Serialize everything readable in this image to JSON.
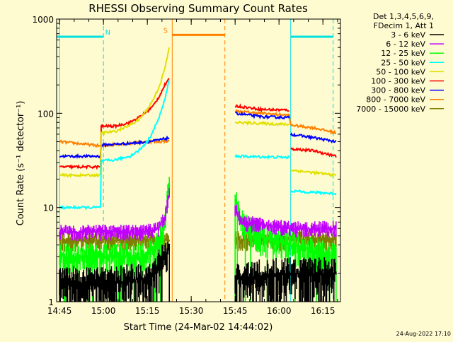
{
  "chart_data": {
    "type": "line",
    "title": "RHESSI Observing Summary Count Rates",
    "xlabel": "Start Time (24-Mar-02 14:44:02)",
    "ylabel": "Count Rate (s⁻¹ detector⁻¹)",
    "yscale": "log",
    "ylim": [
      1,
      1000
    ],
    "xlim_minutes": [
      0,
      97
    ],
    "x_ticks": [
      {
        "label": "14:45",
        "minute": 1
      },
      {
        "label": "15:00",
        "minute": 16
      },
      {
        "label": "15:15",
        "minute": 31
      },
      {
        "label": "15:30",
        "minute": 46
      },
      {
        "label": "15:45",
        "minute": 61
      },
      {
        "label": "16:00",
        "minute": 76
      },
      {
        "label": "16:15",
        "minute": 91
      }
    ],
    "y_ticks": [
      {
        "label": "1",
        "value": 1
      },
      {
        "label": "10",
        "value": 10
      },
      {
        "label": "100",
        "value": 100
      },
      {
        "label": "1000",
        "value": 1000
      }
    ],
    "legend": {
      "position": "top-right",
      "header": [
        "Det 1,3,4,5,6,9,",
        "FDecim 1, Att 1"
      ]
    },
    "flag_bars": [
      {
        "label": "N",
        "color": "#00e0e0",
        "y_value": 650,
        "segments": [
          [
            0,
            16
          ],
          [
            80,
            94.5
          ]
        ],
        "label_minute": 17.5
      },
      {
        "label": "S",
        "color": "#ff8000",
        "y_value": 680,
        "segments": [
          [
            39.5,
            57.5
          ]
        ],
        "label_minute": 37.2
      }
    ],
    "vlines": [
      {
        "minute": 1,
        "color": "#00e0e0",
        "style": "solid"
      },
      {
        "minute": 16,
        "color": "#00e0e0",
        "style": "dashed"
      },
      {
        "minute": 80,
        "color": "#00e0e0",
        "style": "solid"
      },
      {
        "minute": 94.5,
        "color": "#00e0e0",
        "style": "dashed"
      },
      {
        "minute": 39.5,
        "color": "#ff8000",
        "style": "solid"
      },
      {
        "minute": 57.5,
        "color": "#ff8000",
        "style": "dashed"
      }
    ],
    "series": [
      {
        "name": "3 - 6 keV",
        "color": "#000000",
        "style": "noise",
        "base": 1.6,
        "spread": 0.5,
        "floor": 1,
        "drops": 0.3,
        "segments": [
          [
            1,
            38.5
          ],
          [
            61,
            95.5
          ]
        ],
        "points": [
          [
            1,
            1.6
          ],
          [
            20,
            1.6
          ],
          [
            32,
            1.8
          ],
          [
            37,
            3
          ],
          [
            38.5,
            4
          ],
          [
            61,
            1.8
          ],
          [
            80,
            2
          ],
          [
            95.5,
            2
          ]
        ]
      },
      {
        "name": "6 - 12 keV",
        "color": "#c000ff",
        "style": "noise",
        "base": 5.5,
        "spread": 0.2,
        "floor": 1,
        "drops": 0,
        "segments": [
          [
            1,
            38.5
          ],
          [
            61,
            95.5
          ]
        ],
        "points": [
          [
            1,
            5.5
          ],
          [
            30,
            5.5
          ],
          [
            35,
            6
          ],
          [
            37,
            8
          ],
          [
            38.5,
            14
          ],
          [
            61,
            10
          ],
          [
            63,
            7
          ],
          [
            80,
            6
          ],
          [
            95.5,
            6
          ]
        ]
      },
      {
        "name": "12 - 25 keV",
        "color": "#00ff00",
        "style": "noise",
        "base": 3,
        "spread": 0.4,
        "floor": 1,
        "drops": 0.12,
        "segments": [
          [
            1,
            38.5
          ],
          [
            61,
            95.5
          ]
        ],
        "points": [
          [
            1,
            3
          ],
          [
            30,
            3
          ],
          [
            35,
            4
          ],
          [
            37,
            7
          ],
          [
            38.5,
            20
          ],
          [
            61,
            12
          ],
          [
            63,
            7
          ],
          [
            70,
            5
          ],
          [
            80,
            4
          ],
          [
            95.5,
            3
          ]
        ]
      },
      {
        "name": "25 - 50 keV",
        "color": "#00ffff",
        "style": "line",
        "segments": [
          [
            1,
            15
          ],
          [
            15,
            38.5
          ],
          [
            61,
            79.5
          ],
          [
            80,
            95.5
          ]
        ],
        "points": [
          [
            1,
            10
          ],
          [
            15,
            10
          ],
          [
            15,
            31
          ],
          [
            20,
            32
          ],
          [
            25,
            35
          ],
          [
            28,
            40
          ],
          [
            31,
            50
          ],
          [
            33,
            65
          ],
          [
            35,
            90
          ],
          [
            37,
            140
          ],
          [
            38.5,
            230
          ],
          [
            61,
            35
          ],
          [
            79.5,
            34
          ],
          [
            80,
            15
          ],
          [
            95.5,
            14
          ]
        ]
      },
      {
        "name": "50 - 100 keV",
        "color": "#e0e000",
        "style": "line",
        "segments": [
          [
            1,
            15
          ],
          [
            15,
            38.5
          ],
          [
            61,
            79.5
          ],
          [
            80,
            95.5
          ]
        ],
        "points": [
          [
            1,
            22
          ],
          [
            15,
            22
          ],
          [
            15,
            62
          ],
          [
            20,
            64
          ],
          [
            25,
            75
          ],
          [
            28,
            85
          ],
          [
            31,
            110
          ],
          [
            33,
            140
          ],
          [
            35,
            190
          ],
          [
            37,
            300
          ],
          [
            38.5,
            500
          ],
          [
            61,
            80
          ],
          [
            70,
            78
          ],
          [
            79.5,
            76
          ],
          [
            80,
            25
          ],
          [
            95.5,
            22
          ]
        ]
      },
      {
        "name": "100 - 300 keV",
        "color": "#ff0000",
        "style": "line",
        "segments": [
          [
            1,
            15
          ],
          [
            15,
            38.5
          ],
          [
            61,
            79.5
          ],
          [
            80,
            95.5
          ]
        ],
        "points": [
          [
            1,
            27
          ],
          [
            15,
            27
          ],
          [
            15,
            73
          ],
          [
            20,
            73
          ],
          [
            25,
            80
          ],
          [
            28,
            90
          ],
          [
            31,
            105
          ],
          [
            33,
            120
          ],
          [
            35,
            150
          ],
          [
            37,
            200
          ],
          [
            38.5,
            230
          ],
          [
            61,
            120
          ],
          [
            70,
            110
          ],
          [
            79.5,
            108
          ],
          [
            80,
            42
          ],
          [
            88,
            40
          ],
          [
            95.5,
            35
          ]
        ]
      },
      {
        "name": "300 - 800 keV",
        "color": "#0000ff",
        "style": "line",
        "segments": [
          [
            1,
            15
          ],
          [
            15,
            38.5
          ],
          [
            61,
            79.5
          ],
          [
            80,
            95.5
          ]
        ],
        "points": [
          [
            1,
            35
          ],
          [
            15,
            35
          ],
          [
            15,
            46
          ],
          [
            25,
            48
          ],
          [
            31,
            50
          ],
          [
            35,
            52
          ],
          [
            38.5,
            55
          ],
          [
            61,
            100
          ],
          [
            70,
            92
          ],
          [
            79.5,
            90
          ],
          [
            80,
            60
          ],
          [
            88,
            55
          ],
          [
            95.5,
            50
          ]
        ]
      },
      {
        "name": "800 - 7000 keV",
        "color": "#ff8000",
        "style": "line",
        "segments": [
          [
            1,
            38.5
          ],
          [
            61,
            95.5
          ]
        ],
        "points": [
          [
            1,
            50
          ],
          [
            10,
            47
          ],
          [
            15,
            45
          ],
          [
            16,
            45
          ],
          [
            20,
            47
          ],
          [
            25,
            48
          ],
          [
            31,
            50
          ],
          [
            35,
            50
          ],
          [
            38.5,
            51
          ],
          [
            61,
            105
          ],
          [
            70,
            100
          ],
          [
            79.5,
            95
          ],
          [
            80,
            75
          ],
          [
            88,
            70
          ],
          [
            95.5,
            62
          ]
        ]
      },
      {
        "name": "7000 - 15000 keV",
        "color": "#808000",
        "style": "noise",
        "base": 4.5,
        "spread": 0.25,
        "floor": 1,
        "drops": 0,
        "segments": [
          [
            1,
            38.5
          ],
          [
            61,
            95.5
          ]
        ],
        "points": [
          [
            1,
            4.5
          ],
          [
            38.5,
            4.5
          ],
          [
            61,
            4.5
          ],
          [
            95.5,
            4.5
          ]
        ]
      }
    ]
  },
  "footer": {
    "timestamp": "24-Aug-2022 17:10"
  }
}
